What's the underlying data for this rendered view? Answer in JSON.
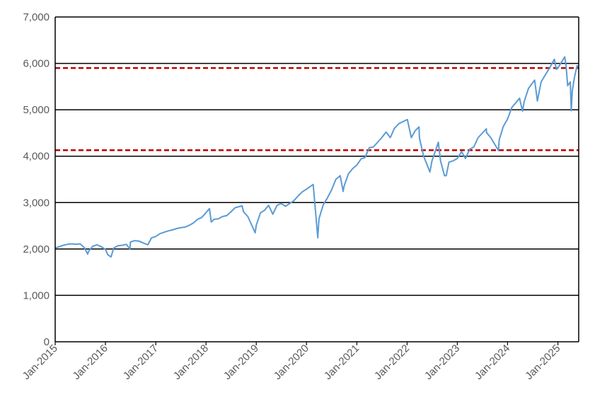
{
  "chart_data": {
    "type": "line",
    "title": "",
    "xlabel": "",
    "ylabel": "",
    "grid": true,
    "legend": "none",
    "ylim": [
      0,
      7000
    ],
    "xlim": [
      "2015-01-01",
      "2025-06-01"
    ],
    "yticks": [
      {
        "value": 0,
        "label": "0"
      },
      {
        "value": 1000,
        "label": "1,000"
      },
      {
        "value": 2000,
        "label": "2,000"
      },
      {
        "value": 3000,
        "label": "3,000"
      },
      {
        "value": 4000,
        "label": "4,000"
      },
      {
        "value": 5000,
        "label": "5,000"
      },
      {
        "value": 6000,
        "label": "6,000"
      },
      {
        "value": 7000,
        "label": "7,000"
      }
    ],
    "xticks": [
      {
        "date": "2015-01-01",
        "label": "Jan-2015"
      },
      {
        "date": "2016-01-01",
        "label": "Jan-2016"
      },
      {
        "date": "2017-01-01",
        "label": "Jan-2017"
      },
      {
        "date": "2018-01-01",
        "label": "Jan-2018"
      },
      {
        "date": "2019-01-01",
        "label": "Jan-2019"
      },
      {
        "date": "2020-01-01",
        "label": "Jan-2020"
      },
      {
        "date": "2021-01-01",
        "label": "Jan-2021"
      },
      {
        "date": "2022-01-01",
        "label": "Jan-2022"
      },
      {
        "date": "2023-01-01",
        "label": "Jan-2023"
      },
      {
        "date": "2024-01-01",
        "label": "Jan-2024"
      },
      {
        "date": "2025-01-01",
        "label": "Jan-2025"
      }
    ],
    "reference_lines": [
      {
        "value": 5900,
        "style": "dashed",
        "color": "#C00000"
      },
      {
        "value": 4130,
        "style": "dashed",
        "color": "#C00000"
      }
    ],
    "series": [
      {
        "color": "#5B9BD5",
        "x": [
          "2015-01-01",
          "2015-02-01",
          "2015-03-01",
          "2015-04-01",
          "2015-05-01",
          "2015-06-01",
          "2015-07-01",
          "2015-08-01",
          "2015-08-25",
          "2015-09-01",
          "2015-10-01",
          "2015-11-01",
          "2015-12-01",
          "2016-01-01",
          "2016-01-20",
          "2016-02-11",
          "2016-03-01",
          "2016-04-01",
          "2016-05-01",
          "2016-06-01",
          "2016-06-27",
          "2016-07-01",
          "2016-08-01",
          "2016-09-01",
          "2016-10-01",
          "2016-11-04",
          "2016-12-01",
          "2017-01-01",
          "2017-02-01",
          "2017-03-01",
          "2017-04-01",
          "2017-05-01",
          "2017-06-01",
          "2017-07-01",
          "2017-08-01",
          "2017-09-01",
          "2017-10-01",
          "2017-11-01",
          "2017-12-01",
          "2018-01-26",
          "2018-02-08",
          "2018-03-01",
          "2018-04-01",
          "2018-05-01",
          "2018-06-01",
          "2018-07-01",
          "2018-08-01",
          "2018-09-20",
          "2018-10-01",
          "2018-11-01",
          "2018-12-24",
          "2019-01-01",
          "2019-02-01",
          "2019-03-01",
          "2019-04-01",
          "2019-05-01",
          "2019-06-01",
          "2019-07-01",
          "2019-08-01",
          "2019-09-01",
          "2019-10-01",
          "2019-11-01",
          "2019-12-01",
          "2020-01-01",
          "2020-02-19",
          "2020-03-23",
          "2020-04-01",
          "2020-05-01",
          "2020-06-01",
          "2020-07-01",
          "2020-08-01",
          "2020-09-02",
          "2020-09-23",
          "2020-10-01",
          "2020-11-01",
          "2020-12-01",
          "2021-01-01",
          "2021-02-01",
          "2021-03-01",
          "2021-04-01",
          "2021-05-01",
          "2021-06-01",
          "2021-07-01",
          "2021-08-01",
          "2021-09-01",
          "2021-10-01",
          "2021-11-01",
          "2022-01-03",
          "2022-02-01",
          "2022-03-01",
          "2022-03-29",
          "2022-04-01",
          "2022-05-01",
          "2022-06-16",
          "2022-07-01",
          "2022-08-16",
          "2022-09-01",
          "2022-09-30",
          "2022-10-12",
          "2022-11-01",
          "2022-12-01",
          "2023-01-01",
          "2023-02-01",
          "2023-03-01",
          "2023-04-01",
          "2023-05-01",
          "2023-06-01",
          "2023-07-31",
          "2023-08-01",
          "2023-09-01",
          "2023-10-27",
          "2023-11-01",
          "2023-12-01",
          "2024-01-01",
          "2024-02-01",
          "2024-03-28",
          "2024-04-19",
          "2024-05-01",
          "2024-06-01",
          "2024-07-16",
          "2024-08-05",
          "2024-09-01",
          "2024-10-01",
          "2024-11-01",
          "2024-12-06",
          "2024-12-20",
          "2025-01-01",
          "2025-02-19",
          "2025-03-01",
          "2025-03-13",
          "2025-04-01",
          "2025-04-08",
          "2025-04-15",
          "2025-05-01",
          "2025-05-20",
          "2025-06-01"
        ],
        "y": [
          2020,
          2050,
          2080,
          2100,
          2110,
          2100,
          2110,
          2030,
          1890,
          1950,
          2060,
          2090,
          2050,
          1990,
          1870,
          1830,
          2020,
          2070,
          2080,
          2100,
          2000,
          2150,
          2180,
          2170,
          2130,
          2090,
          2240,
          2270,
          2330,
          2360,
          2390,
          2410,
          2440,
          2460,
          2470,
          2510,
          2560,
          2640,
          2680,
          2870,
          2580,
          2640,
          2650,
          2700,
          2720,
          2800,
          2890,
          2930,
          2800,
          2700,
          2350,
          2510,
          2780,
          2830,
          2940,
          2750,
          2940,
          2980,
          2920,
          2980,
          3040,
          3140,
          3230,
          3290,
          3390,
          2240,
          2650,
          2950,
          3100,
          3270,
          3500,
          3580,
          3240,
          3360,
          3620,
          3730,
          3810,
          3940,
          3970,
          4180,
          4200,
          4300,
          4400,
          4520,
          4400,
          4600,
          4700,
          4790,
          4400,
          4550,
          4630,
          4390,
          4000,
          3660,
          3900,
          4300,
          3900,
          3580,
          3580,
          3870,
          3900,
          3950,
          4100,
          3950,
          4150,
          4200,
          4400,
          4590,
          4510,
          4400,
          4120,
          4350,
          4640,
          4800,
          5050,
          5250,
          4970,
          5180,
          5460,
          5640,
          5190,
          5600,
          5750,
          5900,
          6090,
          5870,
          5900,
          6140,
          5960,
          5520,
          5600,
          4980,
          5400,
          5700,
          5950,
          5920
        ]
      }
    ]
  }
}
